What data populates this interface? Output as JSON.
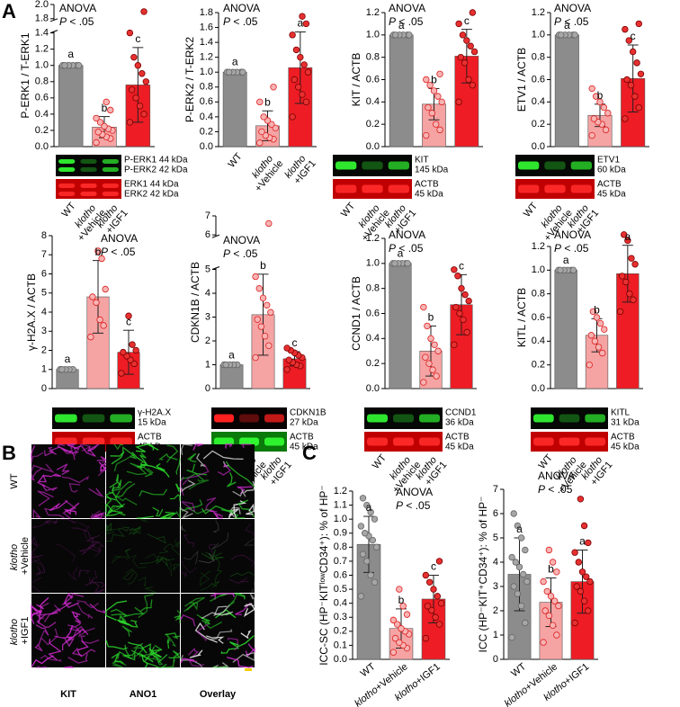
{
  "panel_labels": [
    "A",
    "B",
    "C"
  ],
  "chart_data": [
    {
      "type": "bar",
      "y_label": "P-ERK1 / T-ERK1",
      "annotation": [
        "ANOVA",
        "P < .05"
      ],
      "categories": [
        "WT",
        "klotho +Vehicle",
        "klotho +IGF1"
      ],
      "values": [
        1,
        0.24,
        0.76
      ],
      "errors": [
        0.03,
        0.13,
        0.46
      ],
      "letters": [
        "a",
        "b",
        "c"
      ],
      "points": [
        [
          1,
          1,
          1,
          1,
          1,
          1
        ],
        [
          0.05,
          0.1,
          0.12,
          0.15,
          0.18,
          0.2,
          0.22,
          0.25,
          0.3,
          0.35,
          0.45,
          0.55
        ],
        [
          0.3,
          0.4,
          0.5,
          0.6,
          0.7,
          0.8,
          0.9,
          1.0,
          1.1,
          1.4,
          1.9
        ]
      ],
      "colors": [
        "#8c8c8c",
        "#f5a3a3",
        "#ee1c24"
      ],
      "point_colors": [
        "#a6a6a6",
        "#f7b3b3",
        "#e83030"
      ],
      "ylim": [
        0,
        2
      ],
      "ybreak": [
        1.4,
        1.8
      ],
      "yticks": [
        {
          "value": 0,
          "label": "0.0"
        },
        0.2,
        0.4,
        0.6,
        0.8,
        {
          "value": 1,
          "label": "1.0"
        },
        1.2,
        1.4,
        1.8,
        {
          "value": 2,
          "label": "2.0"
        }
      ],
      "blot_labels": [
        [
          "P-ERK1 44 kDa",
          "P-ERK2 42 kDa"
        ],
        [
          "ERK1 44 kDa",
          "ERK2 42 kDa"
        ]
      ]
    },
    {
      "type": "bar",
      "y_label": "P-ERK2 / T-ERK2",
      "annotation": [
        "ANOVA",
        "P < .05"
      ],
      "categories": [
        "WT",
        "klotho +Vehicle",
        "klotho +IGF1"
      ],
      "values": [
        1,
        0.28,
        1.06
      ],
      "errors": [
        0.02,
        0.2,
        0.48
      ],
      "letters": [
        "a",
        "b",
        "a"
      ],
      "points": [
        [
          1,
          1,
          1,
          1,
          1,
          1
        ],
        [
          0.05,
          0.1,
          0.12,
          0.15,
          0.2,
          0.25,
          0.3,
          0.35,
          0.4,
          0.6,
          0.8
        ],
        [
          0.4,
          0.6,
          0.7,
          0.8,
          0.9,
          1.0,
          1.1,
          1.2,
          1.3,
          1.5,
          1.65,
          1.75
        ]
      ],
      "colors": [
        "#8c8c8c",
        "#f5a3a3",
        "#ee1c24"
      ],
      "point_colors": [
        "#a6a6a6",
        "#f7b3b3",
        "#e83030"
      ],
      "ylim": [
        0,
        1.8
      ],
      "yticks": [
        {
          "value": 0,
          "label": "0.0"
        },
        0.2,
        0.4,
        0.6,
        0.8,
        {
          "value": 1,
          "label": "1.0"
        },
        1.2,
        1.4,
        1.6,
        1.8
      ]
    },
    {
      "type": "bar",
      "y_label": "KIT / ACTB",
      "annotation": [
        "ANOVA",
        "P < .05"
      ],
      "categories": [
        "WT",
        "klotho +Vehicle",
        "klotho +IGF1"
      ],
      "values": [
        1,
        0.38,
        0.81
      ],
      "errors": [
        0.01,
        0.14,
        0.24
      ],
      "letters": [
        "a",
        "b",
        "c"
      ],
      "points": [
        [
          1,
          1,
          1,
          1,
          1,
          1
        ],
        [
          0.1,
          0.15,
          0.2,
          0.3,
          0.35,
          0.4,
          0.45,
          0.5,
          0.55,
          0.6,
          0.65
        ],
        [
          0.4,
          0.55,
          0.6,
          0.75,
          0.8,
          0.85,
          0.9,
          0.95,
          1.0,
          1.1,
          1.2
        ]
      ],
      "colors": [
        "#8c8c8c",
        "#f5a3a3",
        "#ee1c24"
      ],
      "point_colors": [
        "#a6a6a6",
        "#f7b3b3",
        "#e83030"
      ],
      "ylim": [
        0,
        1.2
      ],
      "yticks": [
        {
          "value": 0,
          "label": "0.0"
        },
        0.2,
        0.4,
        0.6,
        0.8,
        {
          "value": 1,
          "label": "1.0"
        },
        1.2
      ],
      "blot_labels": [
        [
          "KIT",
          "145 kDa"
        ],
        [
          "ACTB",
          "45 kDa"
        ]
      ]
    },
    {
      "type": "bar",
      "y_label": "ETV1 / ACTB",
      "annotation": [
        "ANOVA",
        "P < .05"
      ],
      "categories": [
        "WT",
        "klotho +Vehicle",
        "klotho +IGF1"
      ],
      "values": [
        1,
        0.28,
        0.61
      ],
      "errors": [
        0.01,
        0.1,
        0.3
      ],
      "letters": [
        "a",
        "b",
        "c"
      ],
      "points": [
        [
          1,
          1,
          1,
          1,
          1,
          1
        ],
        [
          0.1,
          0.15,
          0.2,
          0.22,
          0.25,
          0.3,
          0.35,
          0.4,
          0.45,
          0.52
        ],
        [
          0.25,
          0.35,
          0.45,
          0.55,
          0.6,
          0.65,
          0.75,
          0.85,
          0.95,
          1.05,
          1.1
        ]
      ],
      "colors": [
        "#8c8c8c",
        "#f5a3a3",
        "#ee1c24"
      ],
      "point_colors": [
        "#a6a6a6",
        "#f7b3b3",
        "#e83030"
      ],
      "ylim": [
        0,
        1.2
      ],
      "yticks": [
        {
          "value": 0,
          "label": "0.0"
        },
        0.2,
        0.4,
        0.6,
        0.8,
        {
          "value": 1,
          "label": "1.0"
        },
        1.2
      ],
      "blot_labels": [
        [
          "ETV1",
          "60 kDa"
        ],
        [
          "ACTB",
          "45 kDa"
        ]
      ]
    },
    {
      "type": "bar",
      "y_label": "γ-H2A.X / ACTB",
      "annotation": [
        "ANOVA",
        "P < .05"
      ],
      "categories": [
        "WT",
        "klotho +Vehicle",
        "klotho +IGF1"
      ],
      "values": [
        1,
        4.8,
        1.9
      ],
      "errors": [
        0.1,
        1.9,
        1.15
      ],
      "letters": [
        "a",
        "b",
        "c"
      ],
      "points": [
        [
          1,
          1,
          1,
          1,
          1
        ],
        [
          2.7,
          3.3,
          3.6,
          4.5,
          4.8,
          5.2,
          6.8,
          7.2
        ],
        [
          0.8,
          1.3,
          1.5,
          1.7,
          1.9,
          2.0,
          2.3,
          3.8
        ]
      ],
      "colors": [
        "#8c8c8c",
        "#f5a3a3",
        "#ee1c24"
      ],
      "point_colors": [
        "#a6a6a6",
        "#f7b3b3",
        "#e83030"
      ],
      "ylim": [
        0,
        8
      ],
      "yticks": [
        0,
        1,
        2,
        3,
        4,
        5,
        6,
        7,
        8
      ],
      "blot_labels": [
        [
          "γ-H2A.X",
          "15 kDa"
        ],
        [
          "ACTB",
          "45 kDa"
        ]
      ]
    },
    {
      "type": "bar",
      "y_label": "CDKN1B / ACTB",
      "annotation": [
        "ANOVA",
        "P < .05"
      ],
      "categories": [
        "WT",
        "klotho +Vehicle",
        "klotho +IGF1"
      ],
      "values": [
        1,
        3.1,
        1.25
      ],
      "errors": [
        0.05,
        1.7,
        0.3
      ],
      "letters": [
        "a",
        "b",
        "c"
      ],
      "points": [
        [
          1,
          1,
          1,
          1,
          1
        ],
        [
          1.3,
          1.8,
          2.2,
          2.6,
          2.9,
          3.2,
          3.5,
          3.8,
          4.2,
          4.7,
          6.6
        ],
        [
          0.8,
          0.95,
          1.0,
          1.1,
          1.2,
          1.3,
          1.4,
          1.5,
          1.6,
          1.7
        ]
      ],
      "colors": [
        "#8c8c8c",
        "#f5a3a3",
        "#ee1c24"
      ],
      "point_colors": [
        "#a6a6a6",
        "#f7b3b3",
        "#e83030"
      ],
      "ylim": [
        0,
        7
      ],
      "ybreak": [
        5,
        6
      ],
      "yticks": [
        0,
        1,
        2,
        3,
        4,
        5,
        6,
        7
      ],
      "blot_labels": [
        [
          "CDKN1B",
          "27 kDa"
        ],
        [
          "ACTB",
          "45 kDa"
        ]
      ]
    },
    {
      "type": "bar",
      "y_label": "CCND1 / ACTB",
      "annotation": [
        "ANOVA",
        "P < .05"
      ],
      "categories": [
        "WT",
        "klotho +Vehicle",
        "klotho +IGF1"
      ],
      "values": [
        1,
        0.3,
        0.67
      ],
      "errors": [
        0.01,
        0.2,
        0.24
      ],
      "letters": [
        "a",
        "b",
        "c"
      ],
      "points": [
        [
          1,
          1,
          1,
          1,
          1,
          1
        ],
        [
          0.05,
          0.1,
          0.15,
          0.2,
          0.25,
          0.3,
          0.35,
          0.4,
          0.5,
          0.65
        ],
        [
          0.35,
          0.45,
          0.55,
          0.6,
          0.65,
          0.7,
          0.75,
          0.8,
          0.9,
          0.95
        ]
      ],
      "colors": [
        "#8c8c8c",
        "#f5a3a3",
        "#ee1c24"
      ],
      "point_colors": [
        "#a6a6a6",
        "#f7b3b3",
        "#e83030"
      ],
      "ylim": [
        0,
        1.2
      ],
      "yticks": [
        {
          "value": 0,
          "label": "0.0"
        },
        0.2,
        0.4,
        0.6,
        0.8,
        {
          "value": 1,
          "label": "1.0"
        },
        1.2
      ],
      "blot_labels": [
        [
          "CCND1",
          "36 kDa"
        ],
        [
          "ACTB",
          "45 kDa"
        ]
      ]
    },
    {
      "type": "bar",
      "y_label": "KITL / ACTB",
      "annotation": [
        "ANOVA",
        "P < .05"
      ],
      "categories": [
        "WT",
        "klotho +Vehicle",
        "klotho +IGF1"
      ],
      "values": [
        1,
        0.45,
        0.97
      ],
      "errors": [
        0.01,
        0.14,
        0.24
      ],
      "letters": [
        "a",
        "b",
        "a"
      ],
      "points": [
        [
          1,
          1,
          1,
          1,
          1,
          1
        ],
        [
          0.2,
          0.3,
          0.35,
          0.4,
          0.45,
          0.5,
          0.55,
          0.6,
          0.65
        ],
        [
          0.65,
          0.75,
          0.8,
          0.9,
          0.95,
          1.05,
          1.1,
          1.25,
          1.3
        ]
      ],
      "colors": [
        "#8c8c8c",
        "#f5a3a3",
        "#ee1c24"
      ],
      "point_colors": [
        "#a6a6a6",
        "#f7b3b3",
        "#e83030"
      ],
      "ylim": [
        0,
        1.2
      ],
      "yticks": [
        {
          "value": 0,
          "label": "0.0"
        },
        0.2,
        0.4,
        0.6,
        0.8,
        {
          "value": 1,
          "label": "1.0"
        },
        1.2
      ],
      "blot_labels": [
        [
          "KITL",
          "31 kDa"
        ],
        [
          "ACTB",
          "45 kDa"
        ]
      ]
    },
    {
      "type": "bar",
      "y_label": "ICC-SC (HP⁻KITˡᵒʷCD34⁺): % of HP⁻",
      "annotation": [
        "ANOVA",
        "P < .05"
      ],
      "categories": [
        "WT",
        "klotho+Vehicle",
        "klotho+IGF1"
      ],
      "values": [
        0.82,
        0.22,
        0.43
      ],
      "errors": [
        0.2,
        0.14,
        0.17
      ],
      "letters": [
        "a",
        "b",
        "c"
      ],
      "points": [
        [
          0.45,
          0.55,
          0.6,
          0.7,
          0.75,
          0.8,
          0.85,
          0.88,
          0.9,
          0.95,
          1.0,
          1.05,
          1.1,
          1.15
        ],
        [
          0.05,
          0.08,
          0.1,
          0.12,
          0.15,
          0.18,
          0.2,
          0.22,
          0.25,
          0.28,
          0.32,
          0.38,
          0.5
        ],
        [
          0.15,
          0.25,
          0.3,
          0.35,
          0.38,
          0.4,
          0.45,
          0.5,
          0.55,
          0.6,
          0.7
        ]
      ],
      "colors": [
        "#8c8c8c",
        "#f5a3a3",
        "#ee1c24"
      ],
      "point_colors": [
        "#a6a6a6",
        "#f7b3b3",
        "#e83030"
      ],
      "ylim": [
        0,
        1.2
      ],
      "yticks": [
        {
          "value": 0,
          "label": "0.0"
        },
        0.1,
        0.2,
        0.3,
        0.4,
        0.5,
        0.6,
        0.7,
        0.8,
        0.9,
        {
          "value": 1,
          "label": "1.0"
        },
        1.1,
        1.2
      ]
    },
    {
      "type": "bar",
      "y_label": "ICC (HP⁻KIT⁺CD34⁺): % of HP⁻",
      "annotation": [
        "ANOVA",
        "P < .05"
      ],
      "categories": [
        "WT",
        "klotho+Vehicle",
        "klotho+IGF1"
      ],
      "values": [
        3.5,
        2.35,
        3.2
      ],
      "errors": [
        1.5,
        1.0,
        1.3
      ],
      "letters": [
        "a",
        "b",
        "a"
      ],
      "points": [
        [
          0.9,
          1.5,
          2.2,
          2.7,
          3,
          3.2,
          3.5,
          3.8,
          4,
          4.2,
          4.5,
          5,
          5.5,
          6
        ],
        [
          0.7,
          1,
          1.4,
          1.8,
          2,
          2.2,
          2.4,
          2.6,
          2.8,
          3.2,
          3.6,
          4,
          4.5
        ],
        [
          1.5,
          2,
          2.4,
          2.8,
          3,
          3.2,
          3.4,
          3.6,
          4,
          4.4,
          4.8,
          5.5,
          6.6
        ]
      ],
      "colors": [
        "#8c8c8c",
        "#f5a3a3",
        "#ee1c24"
      ],
      "point_colors": [
        "#a6a6a6",
        "#f7b3b3",
        "#e83030"
      ],
      "ylim": [
        0,
        7
      ],
      "yticks": [
        0,
        1,
        2,
        3,
        4,
        5,
        6,
        7
      ]
    }
  ],
  "image_panel": {
    "columns": [
      "KIT",
      "ANO1",
      "Overlay"
    ],
    "column_colors": [
      "#c21fc2",
      "#1fbf1f",
      "#333333"
    ],
    "rows": [
      "WT",
      "klotho +Vehicle",
      "klotho +IGF1"
    ]
  }
}
